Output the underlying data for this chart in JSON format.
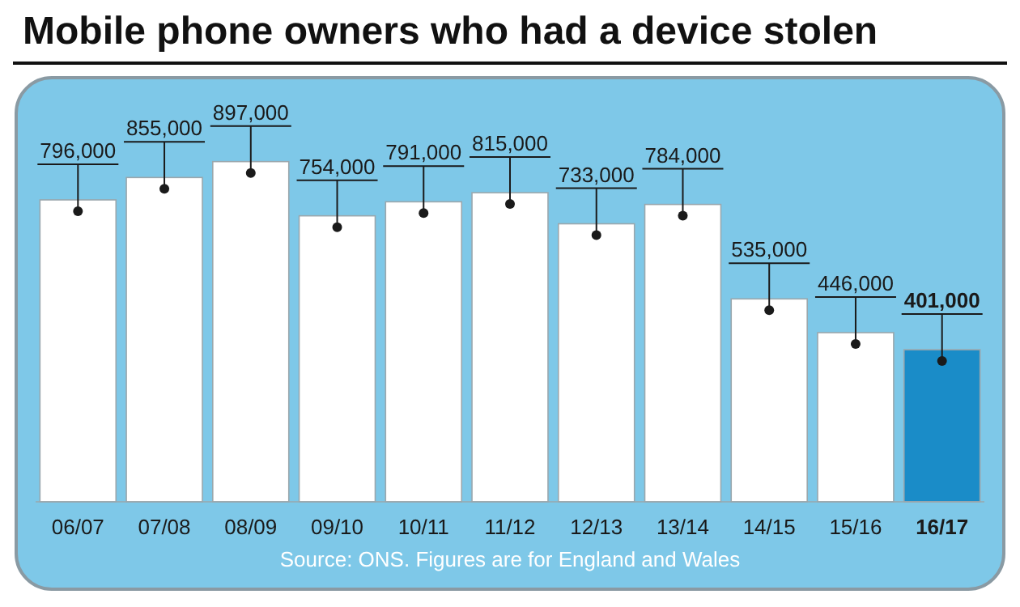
{
  "chart_data": {
    "type": "bar",
    "title": "Mobile phone owners who had a device stolen",
    "categories": [
      "06/07",
      "07/08",
      "08/09",
      "09/10",
      "10/11",
      "11/12",
      "12/13",
      "13/14",
      "14/15",
      "15/16",
      "16/17"
    ],
    "values": [
      796000,
      855000,
      897000,
      754000,
      791000,
      815000,
      733000,
      784000,
      535000,
      446000,
      401000
    ],
    "colors": [
      "#ffffff",
      "#ffffff",
      "#ffffff",
      "#ffffff",
      "#ffffff",
      "#ffffff",
      "#ffffff",
      "#ffffff",
      "#ffffff",
      "#ffffff",
      "#1a8cc8"
    ],
    "value_labels": [
      "796,000",
      "855,000",
      "897,000",
      "754,000",
      "791,000",
      "815,000",
      "733,000",
      "784,000",
      "535,000",
      "446,000",
      "401,000"
    ],
    "annotations": [
      "Source: ONS. Figures are for England and Wales"
    ]
  }
}
